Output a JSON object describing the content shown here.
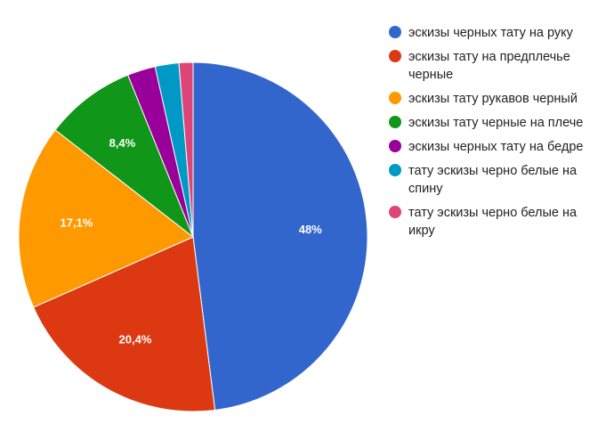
{
  "chart_data": {
    "type": "pie",
    "start_angle_deg": 0,
    "direction": "clockwise",
    "legend_position": "right",
    "slices": [
      {
        "name": "эскизы черных тату на руку",
        "value": 48.0,
        "label": "48%",
        "color": "#3366cc"
      },
      {
        "name": "эскизы тату на предплечье черные",
        "value": 20.4,
        "label": "20,4%",
        "color": "#dc3912"
      },
      {
        "name": "эскизы тату рукавов черный",
        "value": 17.1,
        "label": "17,1%",
        "color": "#ff9900"
      },
      {
        "name": "эскизы тату черные на плече",
        "value": 8.4,
        "label": "8,4%",
        "color": "#109618"
      },
      {
        "name": "эскизы черных тату на бедре",
        "value": 2.6,
        "label": "",
        "color": "#990099"
      },
      {
        "name": "тату эскизы черно белые на спину",
        "value": 2.2,
        "label": "",
        "color": "#0099c6"
      },
      {
        "name": "тату эскизы черно белые на икру",
        "value": 1.3,
        "label": "",
        "color": "#dd4477"
      }
    ]
  }
}
